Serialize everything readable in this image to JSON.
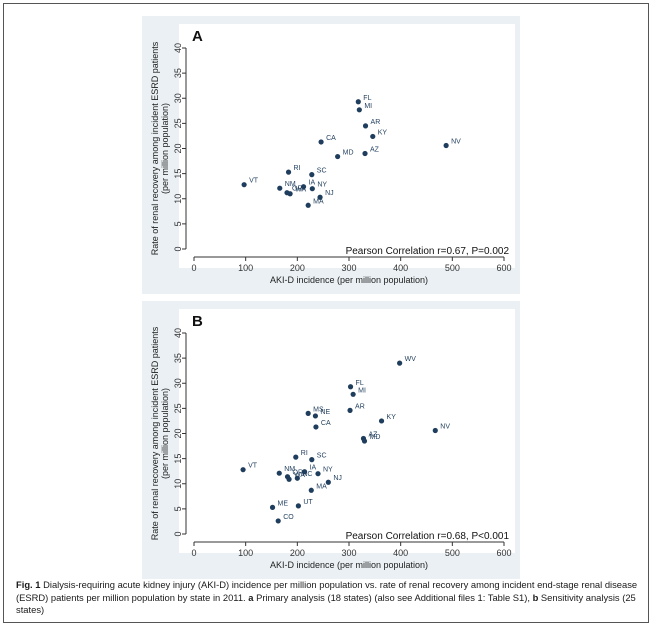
{
  "chart_data": [
    {
      "type": "scatter",
      "panel_label": "A",
      "xlabel": "AKI-D incidence (per million population)",
      "ylabel_line1": "Rate of renal recovery among incident ESRD patients",
      "ylabel_line2": "(per million population)",
      "xlim": [
        0,
        600
      ],
      "ylim": [
        0,
        40
      ],
      "xticks": [
        "0",
        "100",
        "200",
        "300",
        "400",
        "500",
        "600"
      ],
      "yticks": [
        "0",
        "5",
        "10",
        "15",
        "20",
        "25",
        "30",
        "35",
        "40"
      ],
      "grid": false,
      "annotation": "Pearson Correlation r=0.67, P=0.002",
      "annotation_position": "bottom-right",
      "marker_color": "#1f3d5c",
      "points": [
        {
          "label": "FL",
          "x": 318,
          "y": 29.3
        },
        {
          "label": "MI",
          "x": 320,
          "y": 27.7
        },
        {
          "label": "AR",
          "x": 332,
          "y": 24.5
        },
        {
          "label": "KY",
          "x": 346,
          "y": 22.4
        },
        {
          "label": "NV",
          "x": 488,
          "y": 20.6
        },
        {
          "label": "CA",
          "x": 246,
          "y": 21.3
        },
        {
          "label": "AZ",
          "x": 331,
          "y": 19.0
        },
        {
          "label": "MD",
          "x": 278,
          "y": 18.4
        },
        {
          "label": "RI",
          "x": 183,
          "y": 15.3
        },
        {
          "label": "SC",
          "x": 228,
          "y": 14.8
        },
        {
          "label": "VT",
          "x": 97,
          "y": 12.8
        },
        {
          "label": "NM",
          "x": 166,
          "y": 12.1
        },
        {
          "label": "IA",
          "x": 212,
          "y": 12.4
        },
        {
          "label": "NY",
          "x": 229,
          "y": 12.0
        },
        {
          "label": "OR",
          "x": 180,
          "y": 11.2
        },
        {
          "label": "WA",
          "x": 186,
          "y": 11.0
        },
        {
          "label": "NJ",
          "x": 244,
          "y": 10.3
        },
        {
          "label": "MA",
          "x": 221,
          "y": 8.7
        }
      ]
    },
    {
      "type": "scatter",
      "panel_label": "B",
      "xlabel": "AKI-D incidence (per million population)",
      "ylabel_line1": "Rate of renal recovery among incident ESRD patients",
      "ylabel_line2": "(per million population)",
      "xlim": [
        0,
        600
      ],
      "ylim": [
        0,
        40
      ],
      "xticks": [
        "0",
        "100",
        "200",
        "300",
        "400",
        "500",
        "600"
      ],
      "yticks": [
        "0",
        "5",
        "10",
        "15",
        "20",
        "25",
        "30",
        "35",
        "40"
      ],
      "grid": false,
      "annotation": "Pearson Correlation r=0.68, P<0.001",
      "annotation_position": "bottom-right",
      "marker_color": "#1f3d5c",
      "points": [
        {
          "label": "WV",
          "x": 398,
          "y": 34.0
        },
        {
          "label": "FL",
          "x": 303,
          "y": 29.3
        },
        {
          "label": "MI",
          "x": 308,
          "y": 27.8
        },
        {
          "label": "AR",
          "x": 302,
          "y": 24.6
        },
        {
          "label": "MS",
          "x": 221,
          "y": 24.0
        },
        {
          "label": "NE",
          "x": 235,
          "y": 23.5
        },
        {
          "label": "KY",
          "x": 363,
          "y": 22.5
        },
        {
          "label": "CA",
          "x": 236,
          "y": 21.3
        },
        {
          "label": "NV",
          "x": 467,
          "y": 20.6
        },
        {
          "label": "AZ",
          "x": 328,
          "y": 19.0
        },
        {
          "label": "MD",
          "x": 330,
          "y": 18.5
        },
        {
          "label": "RI",
          "x": 197,
          "y": 15.3
        },
        {
          "label": "SC",
          "x": 228,
          "y": 14.8
        },
        {
          "label": "VT",
          "x": 95,
          "y": 12.8
        },
        {
          "label": "NM",
          "x": 165,
          "y": 12.1
        },
        {
          "label": "IA",
          "x": 214,
          "y": 12.4
        },
        {
          "label": "NY",
          "x": 240,
          "y": 12.0
        },
        {
          "label": "OR",
          "x": 181,
          "y": 11.4
        },
        {
          "label": "NC",
          "x": 200,
          "y": 11.1
        },
        {
          "label": "WA",
          "x": 184,
          "y": 10.9
        },
        {
          "label": "NJ",
          "x": 260,
          "y": 10.3
        },
        {
          "label": "MA",
          "x": 227,
          "y": 8.7
        },
        {
          "label": "UT",
          "x": 202,
          "y": 5.6
        },
        {
          "label": "ME",
          "x": 152,
          "y": 5.3
        },
        {
          "label": "CO",
          "x": 163,
          "y": 2.6
        }
      ]
    }
  ],
  "caption": {
    "lead": "Fig. 1",
    "text1": " Dialysis-requiring acute kidney injury (AKI-D) incidence per million population vs. rate of renal recovery among incident end-stage renal disease (ESRD) patients per million population by state in 2011. ",
    "a_label": "a",
    "text2": " Primary analysis (18 states) (also see Additional files 1: Table S1), ",
    "b_label": "b",
    "text3": " Sensitivity analysis (25 states)"
  }
}
